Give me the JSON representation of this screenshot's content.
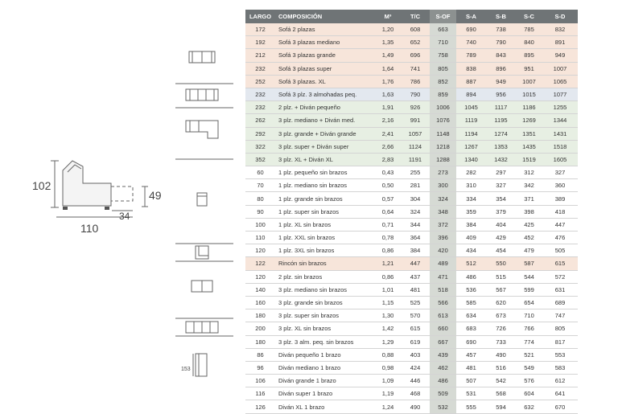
{
  "table": {
    "headers": [
      "LARGO",
      "COMPOSICIÓN",
      "M³",
      "T/C",
      "S-OF",
      "S-A",
      "S-B",
      "S-C",
      "S-D"
    ],
    "rows": [
      {
        "largo": "172",
        "composicion": "Sofá 2 plazas",
        "m3": "1,20",
        "tc": "608",
        "sof": "663",
        "sa": "690",
        "sb": "738",
        "sc": "785",
        "sd": "832"
      },
      {
        "largo": "192",
        "composicion": "Sofá 3 plazas mediano",
        "m3": "1,35",
        "tc": "652",
        "sof": "710",
        "sa": "740",
        "sb": "790",
        "sc": "840",
        "sd": "891"
      },
      {
        "largo": "212",
        "composicion": "Sofá 3 plazas grande",
        "m3": "1,49",
        "tc": "696",
        "sof": "758",
        "sa": "789",
        "sb": "843",
        "sc": "895",
        "sd": "949"
      },
      {
        "largo": "232",
        "composicion": "Sofá 3 plazas super",
        "m3": "1,64",
        "tc": "741",
        "sof": "805",
        "sa": "838",
        "sb": "896",
        "sc": "951",
        "sd": "1007"
      },
      {
        "largo": "252",
        "composicion": "Sofá 3 plazas. XL",
        "m3": "1,76",
        "tc": "786",
        "sof": "852",
        "sa": "887",
        "sb": "949",
        "sc": "1007",
        "sd": "1065"
      },
      {
        "largo": "232",
        "composicion": "Sofá 3 plz. 3 almohadas peq.",
        "m3": "1,63",
        "tc": "790",
        "sof": "859",
        "sa": "894",
        "sb": "956",
        "sc": "1015",
        "sd": "1077"
      },
      {
        "largo": "232",
        "composicion": "2 plz. + Diván pequeño",
        "m3": "1,91",
        "tc": "926",
        "sof": "1006",
        "sa": "1045",
        "sb": "1117",
        "sc": "1186",
        "sd": "1255"
      },
      {
        "largo": "262",
        "composicion": "3 plz. mediano + Diván med.",
        "m3": "2,16",
        "tc": "991",
        "sof": "1076",
        "sa": "1119",
        "sb": "1195",
        "sc": "1269",
        "sd": "1344"
      },
      {
        "largo": "292",
        "composicion": "3 plz. grande + Diván grande",
        "m3": "2,41",
        "tc": "1057",
        "sof": "1148",
        "sa": "1194",
        "sb": "1274",
        "sc": "1351",
        "sd": "1431"
      },
      {
        "largo": "322",
        "composicion": "3 plz. super + Diván super",
        "m3": "2,66",
        "tc": "1124",
        "sof": "1218",
        "sa": "1267",
        "sb": "1353",
        "sc": "1435",
        "sd": "1518"
      },
      {
        "largo": "352",
        "composicion": "3 plz. XL + Diván XL",
        "m3": "2,83",
        "tc": "1191",
        "sof": "1288",
        "sa": "1340",
        "sb": "1432",
        "sc": "1519",
        "sd": "1605"
      },
      {
        "largo": "60",
        "composicion": "1 plz. pequeño sin brazos",
        "m3": "0,43",
        "tc": "255",
        "sof": "273",
        "sa": "282",
        "sb": "297",
        "sc": "312",
        "sd": "327"
      },
      {
        "largo": "70",
        "composicion": "1 plz. mediano sin brazos",
        "m3": "0,50",
        "tc": "281",
        "sof": "300",
        "sa": "310",
        "sb": "327",
        "sc": "342",
        "sd": "360"
      },
      {
        "largo": "80",
        "composicion": "1 plz. grande sin brazos",
        "m3": "0,57",
        "tc": "304",
        "sof": "324",
        "sa": "334",
        "sb": "354",
        "sc": "371",
        "sd": "389"
      },
      {
        "largo": "90",
        "composicion": "1 plz. super sin brazos",
        "m3": "0,64",
        "tc": "324",
        "sof": "348",
        "sa": "359",
        "sb": "379",
        "sc": "398",
        "sd": "418"
      },
      {
        "largo": "100",
        "composicion": "1 plz. XL sin brazos",
        "m3": "0,71",
        "tc": "344",
        "sof": "372",
        "sa": "384",
        "sb": "404",
        "sc": "425",
        "sd": "447"
      },
      {
        "largo": "110",
        "composicion": "1 plz. XXL sin brazos",
        "m3": "0,78",
        "tc": "364",
        "sof": "396",
        "sa": "409",
        "sb": "429",
        "sc": "452",
        "sd": "476"
      },
      {
        "largo": "120",
        "composicion": "1 plz. 3XL sin brazos",
        "m3": "0,86",
        "tc": "384",
        "sof": "420",
        "sa": "434",
        "sb": "454",
        "sc": "479",
        "sd": "505"
      },
      {
        "largo": "122",
        "composicion": "Rincón sin brazos",
        "m3": "1,21",
        "tc": "447",
        "sof": "489",
        "sa": "512",
        "sb": "550",
        "sc": "587",
        "sd": "615"
      },
      {
        "largo": "120",
        "composicion": "2 plz. sin brazos",
        "m3": "0,86",
        "tc": "437",
        "sof": "471",
        "sa": "486",
        "sb": "515",
        "sc": "544",
        "sd": "572"
      },
      {
        "largo": "140",
        "composicion": "3 plz. mediano sin brazos",
        "m3": "1,01",
        "tc": "481",
        "sof": "518",
        "sa": "536",
        "sb": "567",
        "sc": "599",
        "sd": "631"
      },
      {
        "largo": "160",
        "composicion": "3 plz. grande sin brazos",
        "m3": "1,15",
        "tc": "525",
        "sof": "566",
        "sa": "585",
        "sb": "620",
        "sc": "654",
        "sd": "689"
      },
      {
        "largo": "180",
        "composicion": "3 plz. super sin brazos",
        "m3": "1,30",
        "tc": "570",
        "sof": "613",
        "sa": "634",
        "sb": "673",
        "sc": "710",
        "sd": "747"
      },
      {
        "largo": "200",
        "composicion": "3 plz. XL sin brazos",
        "m3": "1,42",
        "tc": "615",
        "sof": "660",
        "sa": "683",
        "sb": "726",
        "sc": "766",
        "sd": "805"
      },
      {
        "largo": "180",
        "composicion": "3 plz. 3 alm. peq. sin brazos",
        "m3": "1,29",
        "tc": "619",
        "sof": "667",
        "sa": "690",
        "sb": "733",
        "sc": "774",
        "sd": "817"
      },
      {
        "largo": "86",
        "composicion": "Diván pequeño 1 brazo",
        "m3": "0,88",
        "tc": "403",
        "sof": "439",
        "sa": "457",
        "sb": "490",
        "sc": "521",
        "sd": "553"
      },
      {
        "largo": "96",
        "composicion": "Diván mediano 1 brazo",
        "m3": "0,98",
        "tc": "424",
        "sof": "462",
        "sa": "481",
        "sb": "516",
        "sc": "549",
        "sd": "583"
      },
      {
        "largo": "106",
        "composicion": "Diván grande 1 brazo",
        "m3": "1,09",
        "tc": "446",
        "sof": "486",
        "sa": "507",
        "sb": "542",
        "sc": "576",
        "sd": "612"
      },
      {
        "largo": "116",
        "composicion": "Diván super 1 brazo",
        "m3": "1,19",
        "tc": "468",
        "sof": "509",
        "sa": "531",
        "sb": "568",
        "sc": "604",
        "sd": "641"
      },
      {
        "largo": "126",
        "composicion": "Diván XL 1 brazo",
        "m3": "1,24",
        "tc": "490",
        "sof": "532",
        "sa": "555",
        "sb": "594",
        "sc": "632",
        "sd": "670"
      }
    ],
    "row_bg": [
      "#f7e5da",
      "#f7e5da",
      "#f7e5da",
      "#f7e5da",
      "#f7e5da",
      "#e3e8ef",
      "#e7efe3",
      "#e7efe3",
      "#e7efe3",
      "#e7efe3",
      "#e7efe3",
      "#ffffff",
      "#ffffff",
      "#ffffff",
      "#ffffff",
      "#ffffff",
      "#ffffff",
      "#ffffff",
      "#f7e5da",
      "#ffffff",
      "#ffffff",
      "#ffffff",
      "#ffffff",
      "#ffffff",
      "#ffffff",
      "#ffffff",
      "#ffffff",
      "#ffffff",
      "#ffffff",
      "#ffffff"
    ]
  },
  "dimensions": {
    "height": "102",
    "depth": "110",
    "seat_depth": "34",
    "seat_height": "49",
    "chaise_width": "153"
  },
  "colors": {
    "header_bg": "#6f7476",
    "highlight_column": "#d6dad4",
    "line": "#666666"
  }
}
